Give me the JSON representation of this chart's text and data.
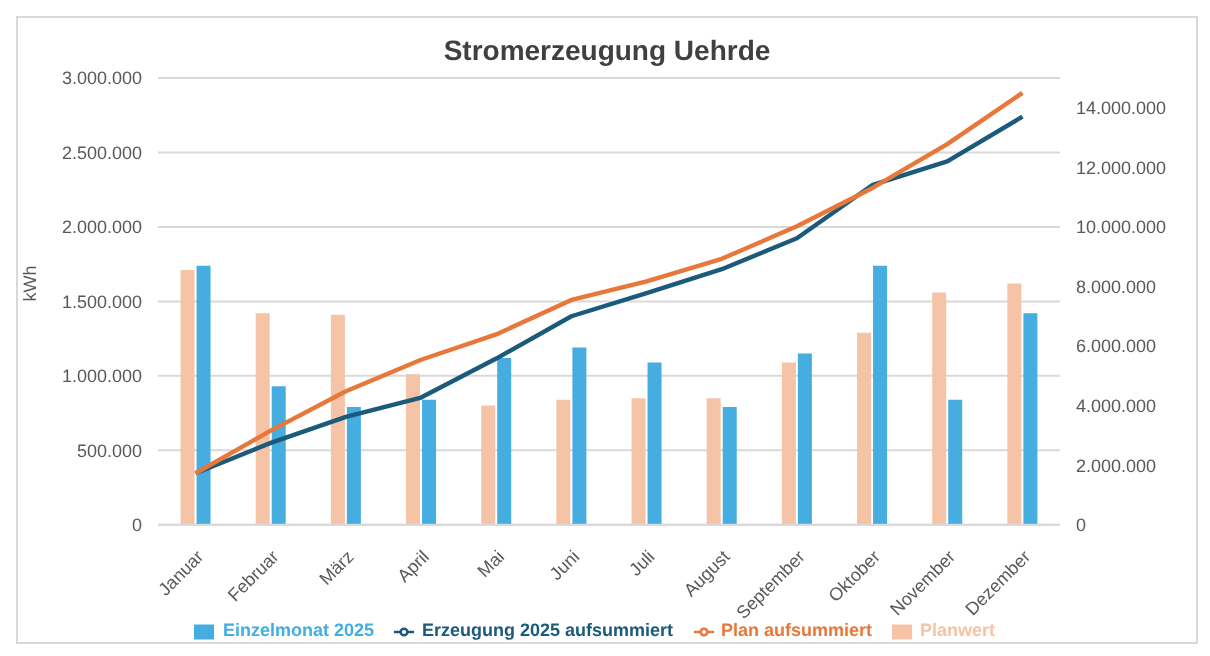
{
  "chart_data": {
    "type": "bar",
    "title": "Stromerzeugung Uehrde",
    "ylabel": "kWh",
    "categories": [
      "Januar",
      "Februar",
      "März",
      "April",
      "Mai",
      "Juni",
      "Juli",
      "August",
      "September",
      "Oktober",
      "November",
      "Dezember"
    ],
    "series": [
      {
        "name": "Planwert",
        "color": "#f5c3a5",
        "values": [
          1710000,
          1420000,
          1410000,
          1010000,
          800000,
          840000,
          850000,
          850000,
          1090000,
          1290000,
          1560000,
          1620000
        ]
      },
      {
        "name": "Einzelmonat 2025",
        "color": "#45ade0",
        "values": [
          1740000,
          930000,
          790000,
          840000,
          1120000,
          1190000,
          1090000,
          790000,
          1150000,
          1740000,
          840000,
          1420000
        ]
      },
      {
        "name": "Erzeugung 2025 aufsummiert",
        "type": "line",
        "axis": "y2",
        "color": "#1b5a7a",
        "values": [
          1730000,
          2750000,
          3620000,
          4270000,
          5580000,
          7000000,
          7780000,
          8580000,
          9620000,
          11400000,
          12200000,
          13700000
        ]
      },
      {
        "name": "Plan aufsummiert",
        "type": "line",
        "axis": "y2",
        "color": "#e8783a",
        "values": [
          1730000,
          3160000,
          4480000,
          5540000,
          6390000,
          7550000,
          8170000,
          8930000,
          10020000,
          11300000,
          12780000,
          14500000
        ]
      }
    ],
    "ylim": [
      0,
      3000000
    ],
    "yticks": [
      {
        "value": 0,
        "label": "0"
      },
      {
        "value": 500000,
        "label": "500.000"
      },
      {
        "value": 1000000,
        "label": "1.000.000"
      },
      {
        "value": 1500000,
        "label": "1.500.000"
      },
      {
        "value": 2000000,
        "label": "2.000.000"
      },
      {
        "value": 2500000,
        "label": "2.500.000"
      },
      {
        "value": 3000000,
        "label": "3.000.000"
      }
    ],
    "y2lim": [
      0,
      15000000
    ],
    "y2ticks": [
      {
        "value": 0,
        "label": "0"
      },
      {
        "value": 2000000,
        "label": "2.000.000"
      },
      {
        "value": 4000000,
        "label": "4.000.000"
      },
      {
        "value": 6000000,
        "label": "6.000.000"
      },
      {
        "value": 8000000,
        "label": "8.000.000"
      },
      {
        "value": 10000000,
        "label": "10.000.000"
      },
      {
        "value": 12000000,
        "label": "12.000.000"
      },
      {
        "value": 14000000,
        "label": "14.000.000"
      }
    ],
    "grid": "y",
    "legend": "bottom",
    "marker": "none"
  }
}
